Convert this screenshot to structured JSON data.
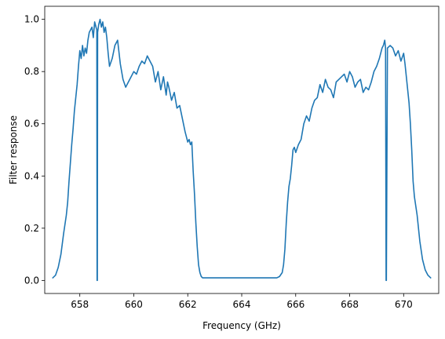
{
  "chart_data": {
    "type": "line",
    "title": "",
    "xlabel": "Frequency (GHz)",
    "ylabel": "Filter response",
    "xlim": [
      656.7,
      671.3
    ],
    "ylim": [
      -0.05,
      1.05
    ],
    "xticks": [
      658,
      660,
      662,
      664,
      666,
      668,
      670
    ],
    "xtick_labels": [
      "658",
      "660",
      "662",
      "664",
      "666",
      "668",
      "670"
    ],
    "yticks": [
      0.0,
      0.2,
      0.4,
      0.6,
      0.8,
      1.0
    ],
    "ytick_labels": [
      "0.0",
      "0.2",
      "0.4",
      "0.6",
      "0.8",
      "1.0"
    ],
    "grid": false,
    "legend": "none",
    "series": [
      {
        "color": "#1f77b4",
        "x": [
          657.0,
          657.1,
          657.2,
          657.3,
          657.4,
          657.5,
          657.55,
          657.6,
          657.65,
          657.7,
          657.75,
          657.8,
          657.85,
          657.9,
          657.95,
          658.0,
          658.05,
          658.1,
          658.15,
          658.2,
          658.25,
          658.3,
          658.35,
          658.4,
          658.45,
          658.5,
          658.55,
          658.6,
          658.63,
          658.64,
          658.65,
          658.66,
          658.7,
          658.75,
          658.8,
          658.85,
          658.9,
          658.95,
          659.0,
          659.05,
          659.1,
          659.2,
          659.3,
          659.4,
          659.5,
          659.6,
          659.7,
          659.8,
          659.9,
          660.0,
          660.1,
          660.2,
          660.3,
          660.4,
          660.5,
          660.55,
          660.6,
          660.7,
          660.8,
          660.9,
          661.0,
          661.1,
          661.2,
          661.25,
          661.3,
          661.4,
          661.5,
          661.6,
          661.7,
          661.8,
          661.9,
          662.0,
          662.05,
          662.1,
          662.15,
          662.2,
          662.25,
          662.3,
          662.35,
          662.4,
          662.45,
          662.5,
          662.55,
          662.6,
          662.7,
          662.8,
          663.0,
          663.5,
          664.0,
          664.5,
          665.0,
          665.3,
          665.4,
          665.5,
          665.55,
          665.6,
          665.65,
          665.7,
          665.75,
          665.8,
          665.85,
          665.9,
          665.95,
          666.0,
          666.1,
          666.2,
          666.3,
          666.4,
          666.5,
          666.6,
          666.7,
          666.8,
          666.9,
          667.0,
          667.1,
          667.2,
          667.3,
          667.4,
          667.5,
          667.6,
          667.7,
          667.8,
          667.9,
          668.0,
          668.1,
          668.2,
          668.3,
          668.4,
          668.5,
          668.6,
          668.7,
          668.8,
          668.9,
          669.0,
          669.1,
          669.2,
          669.25,
          669.3,
          669.33,
          669.35,
          669.36,
          669.4,
          669.5,
          669.6,
          669.7,
          669.8,
          669.9,
          670.0,
          670.05,
          670.1,
          670.15,
          670.2,
          670.25,
          670.3,
          670.35,
          670.4,
          670.5,
          670.6,
          670.7,
          670.8,
          670.9,
          671.0
        ],
        "y": [
          0.01,
          0.02,
          0.05,
          0.1,
          0.18,
          0.25,
          0.3,
          0.38,
          0.45,
          0.52,
          0.58,
          0.65,
          0.7,
          0.75,
          0.82,
          0.88,
          0.85,
          0.9,
          0.86,
          0.89,
          0.87,
          0.92,
          0.95,
          0.96,
          0.97,
          0.93,
          0.99,
          0.97,
          0.96,
          0.0,
          0.0,
          0.95,
          0.98,
          1.0,
          0.97,
          0.99,
          0.95,
          0.97,
          0.93,
          0.87,
          0.82,
          0.85,
          0.9,
          0.92,
          0.83,
          0.77,
          0.74,
          0.76,
          0.78,
          0.8,
          0.79,
          0.82,
          0.84,
          0.83,
          0.86,
          0.85,
          0.84,
          0.82,
          0.76,
          0.8,
          0.73,
          0.78,
          0.71,
          0.76,
          0.74,
          0.69,
          0.72,
          0.66,
          0.67,
          0.62,
          0.57,
          0.53,
          0.54,
          0.52,
          0.53,
          0.42,
          0.33,
          0.22,
          0.13,
          0.06,
          0.03,
          0.015,
          0.01,
          0.01,
          0.01,
          0.01,
          0.01,
          0.01,
          0.01,
          0.01,
          0.01,
          0.01,
          0.015,
          0.03,
          0.06,
          0.12,
          0.22,
          0.3,
          0.36,
          0.39,
          0.44,
          0.5,
          0.51,
          0.49,
          0.52,
          0.54,
          0.6,
          0.63,
          0.61,
          0.66,
          0.69,
          0.7,
          0.75,
          0.72,
          0.77,
          0.74,
          0.73,
          0.7,
          0.76,
          0.77,
          0.78,
          0.79,
          0.76,
          0.8,
          0.78,
          0.74,
          0.76,
          0.77,
          0.72,
          0.74,
          0.73,
          0.76,
          0.8,
          0.82,
          0.85,
          0.89,
          0.9,
          0.92,
          0.89,
          0.0,
          0.0,
          0.89,
          0.9,
          0.89,
          0.86,
          0.88,
          0.84,
          0.87,
          0.83,
          0.78,
          0.73,
          0.68,
          0.6,
          0.5,
          0.38,
          0.32,
          0.25,
          0.15,
          0.08,
          0.04,
          0.02,
          0.01
        ]
      }
    ]
  }
}
